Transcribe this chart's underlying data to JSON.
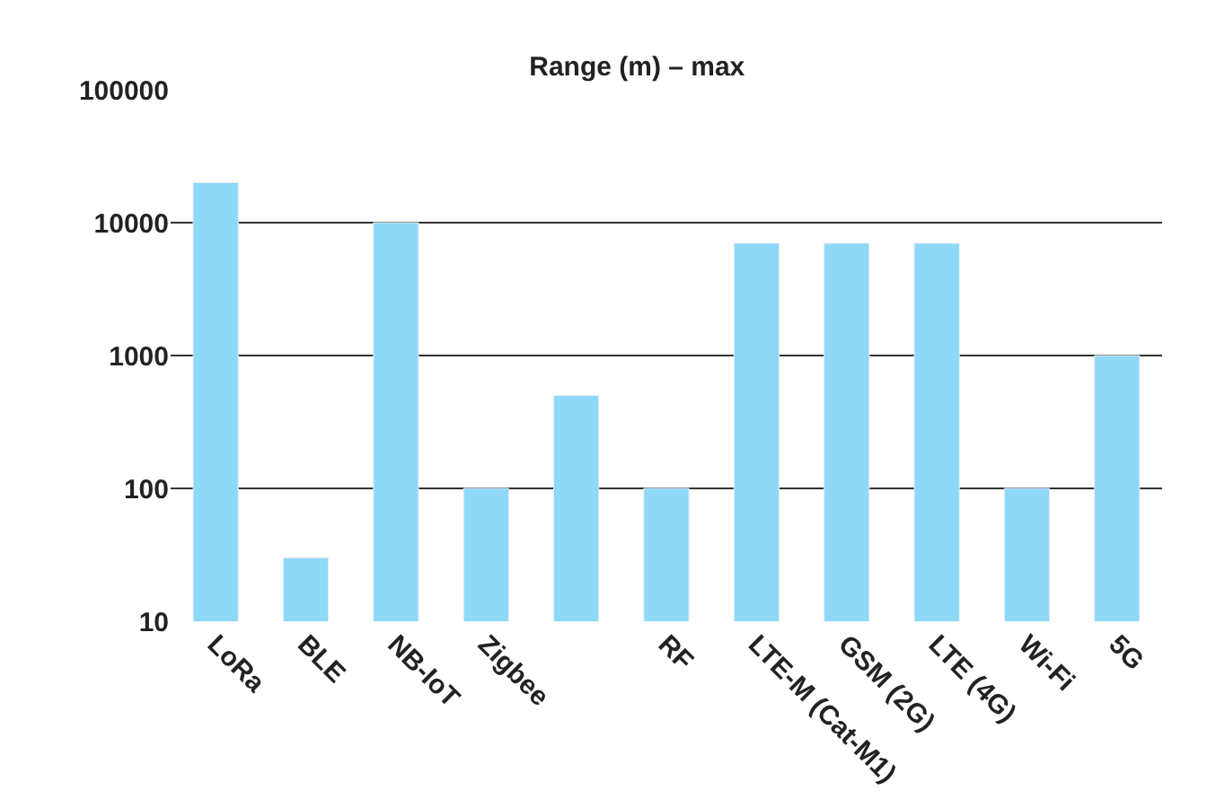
{
  "chart_data": {
    "type": "bar",
    "title": "Range (m) – max",
    "categories": [
      "LoRa",
      "BLE",
      "NB-IoT",
      "Zigbee",
      null,
      "RF",
      "LTE-M (Cat-M1)",
      "GSM (2G)",
      "LTE (4G)",
      "Wi-Fi",
      "5G"
    ],
    "values": [
      20000,
      30,
      10000,
      100,
      500,
      100,
      7000,
      7000,
      7000,
      100,
      1000
    ],
    "color": "#8ed8f8",
    "log": true,
    "ylim": [
      10,
      100000
    ],
    "yticks": [
      10,
      100,
      1000,
      10000,
      100000
    ],
    "grid": "y",
    "legend": false
  }
}
